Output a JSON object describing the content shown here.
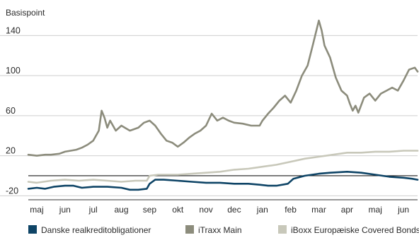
{
  "chart_data": {
    "type": "line",
    "ylabel": "Basispoint",
    "ylim": [
      -24,
      160
    ],
    "yticks": [
      -20,
      20,
      60,
      100,
      140
    ],
    "grid": true,
    "legend": "bottom",
    "x_tick_labels": [
      "maj",
      "jun",
      "jul",
      "aug",
      "sep",
      "okt",
      "nov",
      "dec",
      "jan",
      "feb",
      "mar",
      "apr",
      "maj",
      "jun"
    ],
    "x_tick_positions": [
      0,
      1,
      2,
      3,
      4,
      5,
      6,
      7,
      8,
      9,
      10,
      11,
      12,
      13
    ],
    "xlim": [
      -0.3,
      13.5
    ],
    "series": [
      {
        "name": "Danske realkreditobligationer",
        "color": "#0e4466",
        "x": [
          -0.3,
          0,
          0.3,
          0.6,
          1,
          1.3,
          1.6,
          2,
          2.5,
          3,
          3.3,
          3.6,
          3.9,
          4,
          4.2,
          4.5,
          5,
          5.5,
          6,
          6.5,
          7,
          7.5,
          7.9,
          8.2,
          8.5,
          8.9,
          9.1,
          9.5,
          10,
          10.4,
          11,
          11.5,
          12,
          12.5,
          13,
          13.3,
          13.5
        ],
        "values": [
          -13,
          -12,
          -13,
          -11,
          -10,
          -10,
          -12,
          -11,
          -11,
          -12,
          -14,
          -14,
          -13,
          -8,
          -4,
          -4,
          -5,
          -6,
          -7,
          -7,
          -8,
          -8,
          -9,
          -10,
          -10,
          -8,
          -3,
          0,
          2,
          3,
          4,
          3,
          1,
          -1,
          -2,
          -3,
          -4
        ]
      },
      {
        "name": "iTraxx Main",
        "color": "#8c8c7c",
        "x": [
          -0.3,
          0,
          0.3,
          0.5,
          0.8,
          1,
          1.2,
          1.4,
          1.6,
          1.8,
          2,
          2.2,
          2.3,
          2.4,
          2.5,
          2.6,
          2.8,
          3,
          3.3,
          3.6,
          3.8,
          4,
          4.2,
          4.4,
          4.6,
          4.8,
          5,
          5.2,
          5.4,
          5.6,
          5.8,
          6,
          6.2,
          6.4,
          6.6,
          6.8,
          7,
          7.3,
          7.6,
          7.9,
          8,
          8.2,
          8.4,
          8.6,
          8.8,
          9,
          9.2,
          9.4,
          9.6,
          9.8,
          10,
          10.1,
          10.2,
          10.4,
          10.6,
          10.8,
          11,
          11.1,
          11.2,
          11.3,
          11.4,
          11.6,
          11.8,
          12,
          12.2,
          12.4,
          12.6,
          12.8,
          13,
          13.2,
          13.4,
          13.5
        ],
        "values": [
          21,
          20,
          21,
          21,
          22,
          24,
          25,
          26,
          28,
          31,
          35,
          45,
          65,
          58,
          48,
          55,
          45,
          50,
          45,
          48,
          53,
          55,
          50,
          42,
          35,
          33,
          29,
          33,
          38,
          42,
          45,
          50,
          62,
          55,
          58,
          55,
          53,
          52,
          50,
          50,
          55,
          62,
          68,
          75,
          80,
          73,
          85,
          100,
          110,
          132,
          155,
          145,
          130,
          118,
          98,
          85,
          80,
          72,
          65,
          70,
          63,
          78,
          82,
          75,
          82,
          85,
          88,
          85,
          95,
          106,
          108,
          104
        ]
      },
      {
        "name": "iBoxx Europæiske Covered Bonds",
        "color": "#c8c8ba",
        "x": [
          -0.3,
          0,
          0.5,
          1,
          1.5,
          2,
          2.5,
          3,
          3.5,
          3.9,
          4,
          4.3,
          4.6,
          5,
          5.5,
          6,
          6.5,
          7,
          7.5,
          8,
          8.5,
          9,
          9.5,
          10,
          10.5,
          11,
          11.5,
          12,
          12.5,
          13,
          13.5
        ],
        "values": [
          -6,
          -7,
          -5,
          -4,
          -5,
          -4,
          -5,
          -6,
          -5,
          -5,
          0,
          1,
          1,
          1,
          2,
          3,
          4,
          6,
          7,
          9,
          11,
          14,
          17,
          19,
          21,
          23,
          23,
          24,
          24,
          25,
          25
        ]
      }
    ]
  }
}
